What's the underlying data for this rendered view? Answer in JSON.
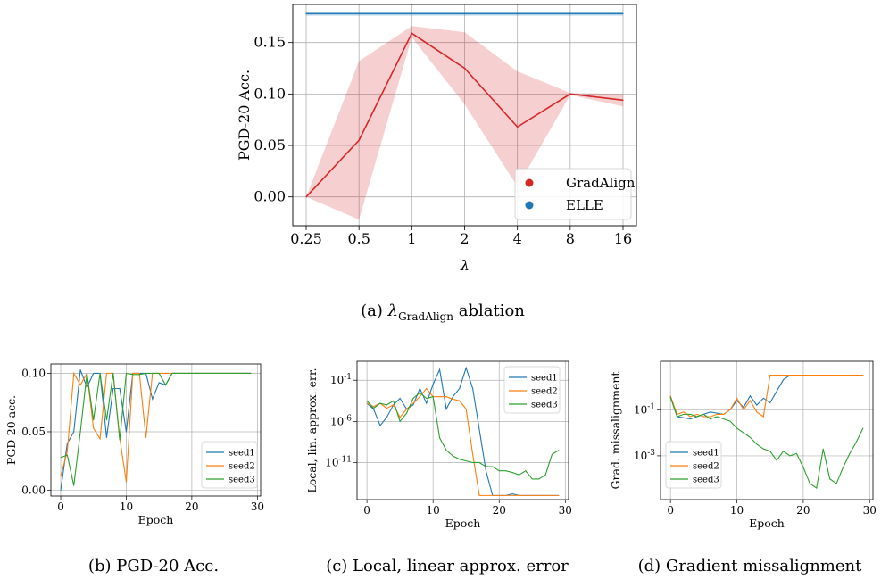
{
  "captions": {
    "a_prefix": "(a)",
    "a_lambda": "λ",
    "a_sub": "GradAlign",
    "a_suffix": " ablation",
    "b": "(b) PGD-20 Acc.",
    "c": "(c) Local, linear approx. error",
    "d": "(d) Gradient missalignment"
  },
  "colors": {
    "gradalign": "#d62728",
    "elle": "#1f77b4",
    "seed1": "#1f77b4",
    "seed2": "#ff7f0e",
    "seed3": "#2ca02c"
  },
  "chart_data": [
    {
      "type": "line",
      "xlabel": "λ",
      "ylabel": "PGD-20 Acc.",
      "x_ticks": [
        "0.25",
        "0.5",
        "1",
        "2",
        "4",
        "8",
        "16"
      ],
      "y_ticks": [
        "0.00",
        "0.05",
        "0.10",
        "0.15"
      ],
      "ylim": [
        -0.028,
        0.187
      ],
      "legend_position": "lower-right",
      "grid": true,
      "series": [
        {
          "name": "GradAlign",
          "values": [
            0.0,
            0.055,
            0.159,
            0.125,
            0.068,
            0.1,
            0.094
          ],
          "lower": [
            0.0,
            -0.022,
            0.155,
            0.09,
            0.01,
            0.099,
            0.088
          ],
          "upper": [
            0.0,
            0.132,
            0.166,
            0.16,
            0.122,
            0.101,
            0.1
          ]
        },
        {
          "name": "ELLE",
          "values": [
            0.178,
            0.178,
            0.178,
            0.178,
            0.178,
            0.178,
            0.178
          ],
          "lower": [
            0.176,
            0.176,
            0.176,
            0.176,
            0.176,
            0.176,
            0.176
          ],
          "upper": [
            0.18,
            0.18,
            0.18,
            0.18,
            0.18,
            0.18,
            0.18
          ]
        }
      ]
    },
    {
      "type": "line",
      "xlabel": "Epoch",
      "ylabel": "PGD-20 acc.",
      "x_ticks": [
        "0",
        "10",
        "20",
        "30"
      ],
      "y_ticks": [
        "0.00",
        "0.05",
        "0.10"
      ],
      "xlim": [
        -1.5,
        30.5
      ],
      "ylim": [
        -0.005,
        0.108
      ],
      "legend_position": "lower-right",
      "grid": true,
      "series": [
        {
          "name": "seed1",
          "values": [
            0.0,
            0.04,
            0.05,
            0.103,
            0.088,
            0.1,
            0.1,
            0.045,
            0.087,
            0.087,
            0.05,
            0.1,
            0.1,
            0.1,
            0.078,
            0.092,
            0.09,
            0.1,
            0.1,
            0.1,
            0.1,
            0.1,
            0.1,
            0.1,
            0.1,
            0.1,
            0.1,
            0.1,
            0.1,
            0.1
          ]
        },
        {
          "name": "seed2",
          "values": [
            0.012,
            0.033,
            0.1,
            0.09,
            0.1,
            0.053,
            0.044,
            0.1,
            0.1,
            0.045,
            0.007,
            0.1,
            0.1,
            0.045,
            0.1,
            0.1,
            0.1,
            0.1,
            0.1,
            0.1,
            0.1,
            0.1,
            0.1,
            0.1,
            0.1,
            0.1,
            0.1,
            0.1,
            0.1,
            0.1
          ]
        },
        {
          "name": "seed3",
          "values": [
            0.028,
            0.03,
            0.004,
            0.05,
            0.1,
            0.06,
            0.1,
            0.06,
            0.1,
            0.043,
            0.1,
            0.099,
            0.099,
            0.1,
            0.1,
            0.1,
            0.09,
            0.1,
            0.1,
            0.1,
            0.1,
            0.1,
            0.1,
            0.1,
            0.1,
            0.1,
            0.1,
            0.1,
            0.1,
            0.1
          ]
        }
      ]
    },
    {
      "type": "line",
      "xlabel": "Epoch",
      "ylabel": "Local, lin. approx. err.",
      "y_scale": "log",
      "x_ticks": [
        "0",
        "10",
        "20",
        "30"
      ],
      "y_ticks": [
        "10^{-1}",
        "10^{-6}",
        "10^{-11}"
      ],
      "xlim": [
        -1.5,
        30.5
      ],
      "log10_ylim": [
        -15.5,
        1.3
      ],
      "legend_position": "upper-right",
      "grid": true,
      "series": [
        {
          "name": "seed1",
          "log10_values": [
            -3.8,
            -4.5,
            -6.5,
            -5.5,
            -4.0,
            -3.2,
            -4.5,
            -4.0,
            -2.0,
            -3.8,
            -1.5,
            0.3,
            -4.5,
            -3.0,
            -2.0,
            0.5,
            -2.0,
            -7.0,
            -12.0,
            -15.0,
            -15.0,
            -15.0,
            -14.8,
            -15.0,
            -15.0,
            -15.0,
            -15.0,
            -15.0,
            -15.0,
            -15.0
          ]
        },
        {
          "name": "seed2",
          "log10_values": [
            -3.8,
            -4.2,
            -3.8,
            -4.4,
            -4.0,
            -5.5,
            -4.5,
            -3.8,
            -3.0,
            -2.0,
            -3.0,
            -3.0,
            -3.0,
            -3.3,
            -3.5,
            -4.5,
            -10.0,
            -15.0,
            -15.0,
            -15.0,
            -15.0,
            -15.0,
            -15.0,
            -15.0,
            -15.0,
            -15.0,
            -15.0,
            -15.0,
            -15.0,
            -15.0
          ]
        },
        {
          "name": "seed3",
          "log10_values": [
            -3.5,
            -4.4,
            -3.8,
            -4.0,
            -3.5,
            -6.0,
            -5.0,
            -3.2,
            -2.5,
            -3.2,
            -3.0,
            -8.0,
            -9.5,
            -10.2,
            -10.6,
            -10.8,
            -11.0,
            -11.0,
            -11.5,
            -11.5,
            -12.0,
            -12.0,
            -12.2,
            -12.5,
            -12.0,
            -13.0,
            -13.0,
            -12.5,
            -10.0,
            -9.5
          ]
        }
      ]
    },
    {
      "type": "line",
      "xlabel": "Epoch",
      "ylabel": "Grad. missalignment",
      "y_scale": "log",
      "x_ticks": [
        "0",
        "10",
        "20",
        "30"
      ],
      "y_ticks": [
        "10^{-1}",
        "10^{-3}"
      ],
      "xlim": [
        -1.5,
        30.5
      ],
      "log10_ylim": [
        -4.9,
        1.1
      ],
      "legend_position": "lower-left",
      "grid": true,
      "series": [
        {
          "name": "seed1",
          "log10_values": [
            -0.45,
            -1.3,
            -1.35,
            -1.4,
            -1.3,
            -1.2,
            -1.1,
            -1.15,
            -1.2,
            -1.0,
            -0.6,
            -0.9,
            -0.4,
            -0.8,
            -0.5,
            -0.7,
            -0.2,
            0.3,
            0.5,
            0.5,
            0.5,
            0.5,
            0.5,
            0.5,
            0.5,
            0.5,
            0.5,
            0.5,
            0.5,
            0.5
          ]
        },
        {
          "name": "seed2",
          "log10_values": [
            -0.4,
            -1.2,
            -1.1,
            -1.3,
            -1.2,
            -1.3,
            -1.3,
            -1.2,
            -1.2,
            -1.0,
            -0.5,
            -1.0,
            -0.6,
            -1.1,
            -1.3,
            0.5,
            0.5,
            0.5,
            0.5,
            0.5,
            0.5,
            0.5,
            0.5,
            0.5,
            0.5,
            0.5,
            0.5,
            0.5,
            0.5,
            0.5
          ]
        },
        {
          "name": "seed3",
          "log10_values": [
            -0.45,
            -1.3,
            -1.2,
            -1.2,
            -1.3,
            -1.2,
            -1.4,
            -1.3,
            -1.4,
            -1.5,
            -1.8,
            -2.0,
            -2.2,
            -2.5,
            -2.7,
            -2.8,
            -3.2,
            -2.8,
            -3.0,
            -2.9,
            -3.5,
            -4.2,
            -4.4,
            -2.7,
            -4.0,
            -4.2,
            -3.5,
            -2.9,
            -2.4,
            -1.8
          ]
        }
      ]
    }
  ]
}
